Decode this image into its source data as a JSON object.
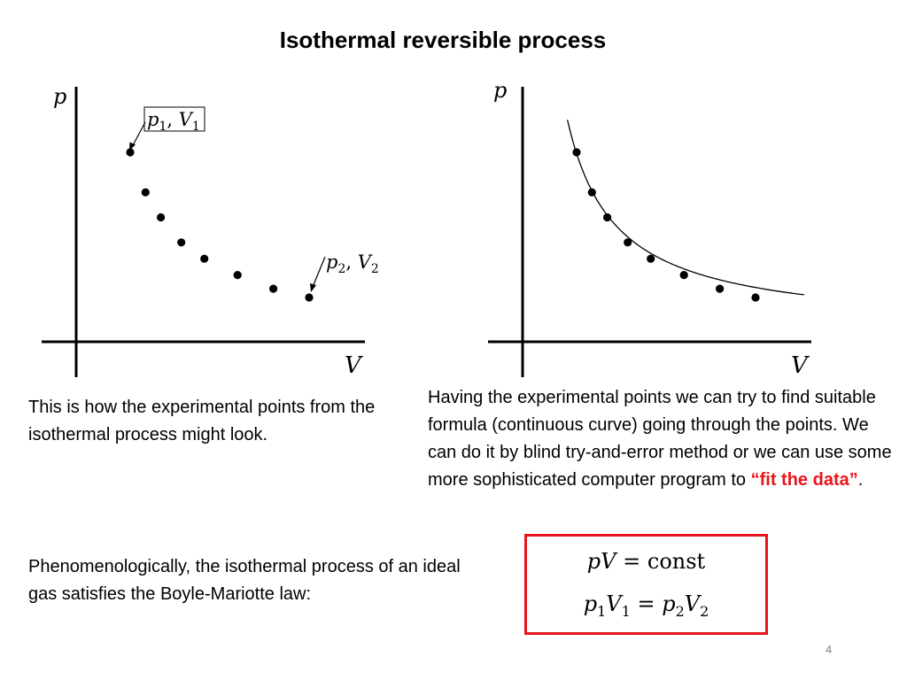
{
  "title": "Isothermal reversible process",
  "chart_data": [
    {
      "type": "scatter",
      "xlabel": "V",
      "ylabel": "p",
      "points": [
        [
          1.0,
          8.0
        ],
        [
          1.3,
          6.4
        ],
        [
          1.6,
          5.4
        ],
        [
          2.0,
          4.4
        ],
        [
          2.45,
          3.75
        ],
        [
          3.1,
          3.1
        ],
        [
          3.8,
          2.55
        ],
        [
          4.5,
          2.2
        ]
      ],
      "annotations": [
        "p1, V1",
        "p2, V2"
      ]
    },
    {
      "type": "line",
      "xlabel": "V",
      "ylabel": "p",
      "points": [
        [
          1.0,
          8.0
        ],
        [
          1.3,
          6.4
        ],
        [
          1.6,
          5.4
        ],
        [
          2.0,
          4.4
        ],
        [
          2.45,
          3.75
        ],
        [
          3.1,
          3.1
        ],
        [
          3.8,
          2.55
        ],
        [
          4.5,
          2.2
        ]
      ],
      "curve": "p = const / V"
    }
  ],
  "text": {
    "left_caption": "This is how the experimental points from the isothermal process might look.",
    "right_caption_start": "Having the experimental points we can try to find suitable formula (continuous curve) going through the points. We can do it by blind try-and-error method or we can use some more sophisticated computer program to ",
    "right_caption_highlight": "“fit the data”",
    "right_caption_end": ".",
    "bottom_text": "Phenomenologically, the isothermal process of an ideal gas satisfies the Boyle-Mariotte law:"
  },
  "law": {
    "line1": {
      "p": "p",
      "V": "V",
      "rhs": " = const"
    },
    "line2": {
      "p1": "p",
      "s1": "1",
      "V1": "V",
      "s2": "1",
      "eq": " = ",
      "p2": "p",
      "s3": "2",
      "V2": "V",
      "s4": "2"
    }
  },
  "page_number": "4",
  "colors": {
    "accent": "#e8151b",
    "page_number": "#808080"
  }
}
